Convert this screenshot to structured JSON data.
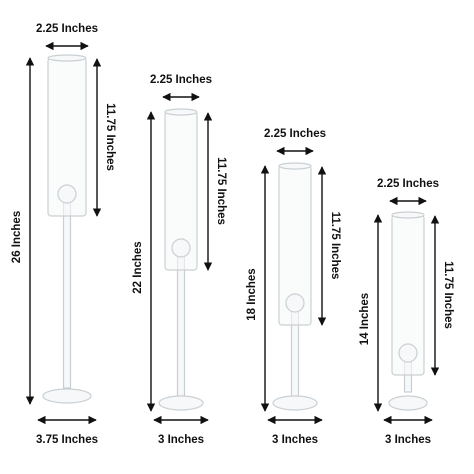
{
  "items": [
    {
      "top_width": "2.25 Inches",
      "tube_height": "11.75 Inches",
      "total_height": "26 Inches",
      "base_width": "3.75 Inches"
    },
    {
      "top_width": "2.25 Inches",
      "tube_height": "11.75 Inches",
      "total_height": "22 Inches",
      "base_width": "3 Inches"
    },
    {
      "top_width": "2.25 Inches",
      "tube_height": "11.75 Inches",
      "total_height": "18 Inches",
      "base_width": "3 Inches"
    },
    {
      "top_width": "2.25 Inches",
      "tube_height": "11.75 Inches",
      "total_height": "14 Inches",
      "base_width": "3 Inches"
    }
  ]
}
